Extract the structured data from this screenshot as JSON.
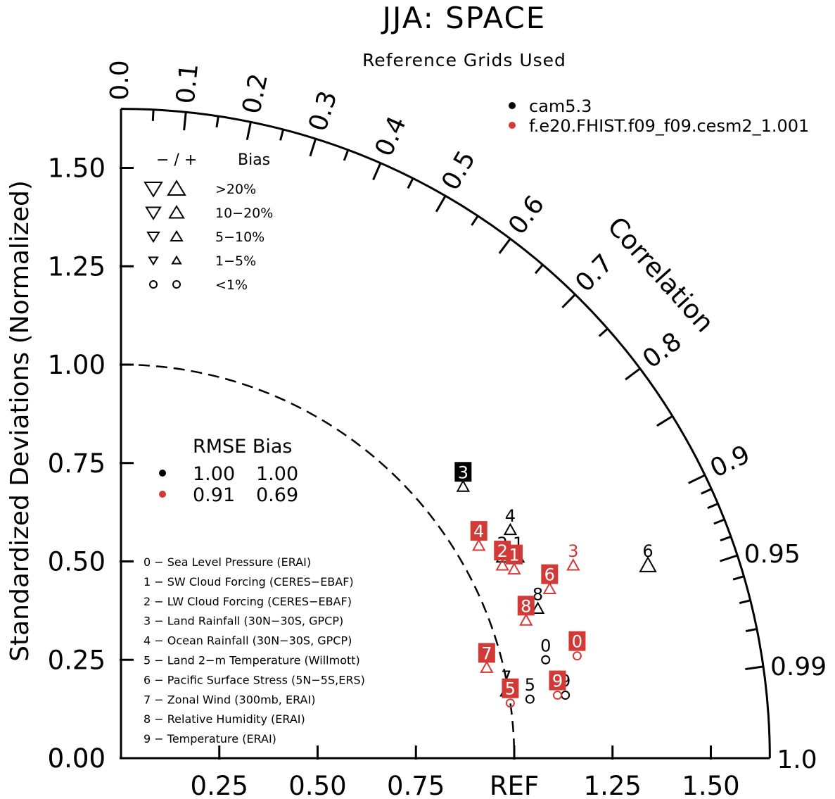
{
  "chart_data": {
    "type": "scatter",
    "subtype": "taylor-diagram",
    "title": "JJA: SPACE",
    "subtitle": "Reference Grids Used",
    "ylabel": "Standardized Deviations (Normalized)",
    "arc_label": "Correlation",
    "ref_label": "REF",
    "std_max": 1.65,
    "y_ticks": [
      "0.00",
      "0.25",
      "0.50",
      "0.75",
      "1.00",
      "1.25",
      "1.50"
    ],
    "x_ticks": [
      "0.25",
      "0.50",
      "0.75",
      "REF",
      "1.25",
      "1.50"
    ],
    "corr_labels": [
      "0.0",
      "0.1",
      "0.2",
      "0.3",
      "0.4",
      "0.5",
      "0.6",
      "0.7",
      "0.8",
      "0.9",
      "0.95",
      "0.99",
      "1.0"
    ],
    "series": [
      {
        "name": "cam5.3",
        "color": "#000000",
        "rmse": "1.00",
        "bias": "1.00",
        "points": [
          {
            "id": "0",
            "x": 1.08,
            "y": 0.25,
            "marker": "circle",
            "label_box": false
          },
          {
            "id": "1",
            "x": 1.01,
            "y": 0.51,
            "marker": "up",
            "label_box": false
          },
          {
            "id": "2",
            "x": 0.97,
            "y": 0.51,
            "marker": "up",
            "label_box": false
          },
          {
            "id": "3",
            "x": 0.87,
            "y": 0.69,
            "marker": "up",
            "label_box": true
          },
          {
            "id": "4",
            "x": 0.99,
            "y": 0.58,
            "marker": "up",
            "label_box": false
          },
          {
            "id": "5",
            "x": 1.04,
            "y": 0.15,
            "marker": "circle",
            "label_box": false
          },
          {
            "id": "6",
            "x": 1.34,
            "y": 0.49,
            "marker": "up",
            "label_box": false
          },
          {
            "id": "7",
            "x": 0.98,
            "y": 0.17,
            "marker": "up",
            "label_box": false
          },
          {
            "id": "8",
            "x": 1.06,
            "y": 0.38,
            "marker": "up",
            "label_box": false
          },
          {
            "id": "9",
            "x": 1.13,
            "y": 0.16,
            "marker": "circle",
            "label_box": false
          }
        ]
      },
      {
        "name": "f.e20.FHIST.f09_f09.cesm2_1.001",
        "color": "#d23a37",
        "rmse": "0.91",
        "bias": "0.69",
        "points": [
          {
            "id": "0",
            "x": 1.16,
            "y": 0.26,
            "marker": "circle",
            "label_box": true
          },
          {
            "id": "1",
            "x": 1.0,
            "y": 0.48,
            "marker": "up",
            "label_box": true
          },
          {
            "id": "2",
            "x": 0.97,
            "y": 0.49,
            "marker": "up",
            "label_box": true
          },
          {
            "id": "3",
            "x": 1.15,
            "y": 0.49,
            "marker": "up",
            "label_box": false
          },
          {
            "id": "4",
            "x": 0.91,
            "y": 0.54,
            "marker": "up",
            "label_box": true
          },
          {
            "id": "5",
            "x": 0.99,
            "y": 0.14,
            "marker": "circle",
            "label_box": true
          },
          {
            "id": "6",
            "x": 1.09,
            "y": 0.43,
            "marker": "up",
            "label_box": true
          },
          {
            "id": "7",
            "x": 0.93,
            "y": 0.23,
            "marker": "up",
            "label_box": true
          },
          {
            "id": "8",
            "x": 1.03,
            "y": 0.35,
            "marker": "up",
            "label_box": true
          },
          {
            "id": "9",
            "x": 1.11,
            "y": 0.16,
            "marker": "circle",
            "label_box": true
          }
        ]
      }
    ],
    "bias_legend": {
      "header_signs": "− / +",
      "header_label": "Bias",
      "rows": [
        ">20%",
        "10−20%",
        "5−10%",
        "1−5%",
        "<1%"
      ]
    },
    "stats_header": "RMSE Bias",
    "variables": [
      "0 − Sea Level Pressure (ERAI)",
      "1 − SW Cloud Forcing (CERES−EBAF)",
      "2 − LW Cloud Forcing (CERES−EBAF)",
      "3 − Land Rainfall (30N−30S, GPCP)",
      "4 − Ocean Rainfall (30N−30S, GPCP)",
      "5 − Land 2−m Temperature (Willmott)",
      "6 − Pacific Surface Stress (5N−5S,ERS)",
      "7 − Zonal Wind (300mb, ERAI)",
      "8 − Relative Humidity (ERAI)",
      "9 − Temperature (ERAI)"
    ]
  }
}
